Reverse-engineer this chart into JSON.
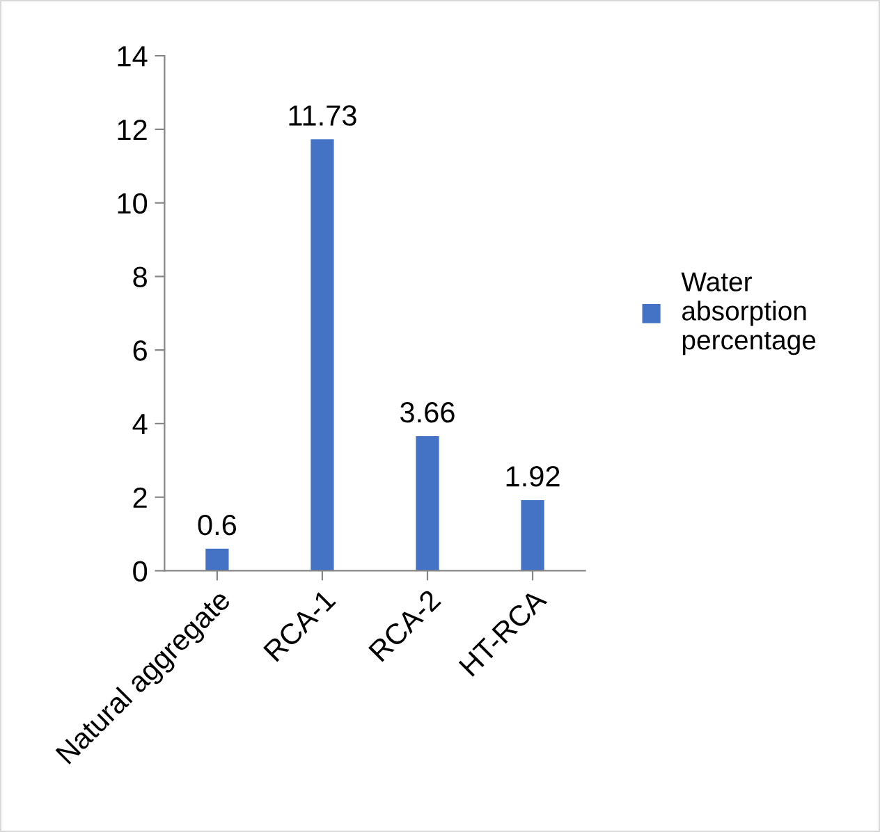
{
  "chart_data": {
    "type": "bar",
    "categories": [
      "Natural aggregate",
      "RCA-1",
      "RCA-2",
      "HT-RCA"
    ],
    "series": [
      {
        "name": "Water absorption percentage",
        "color": "#4472c4",
        "values": [
          0.6,
          11.73,
          3.66,
          1.92
        ]
      }
    ],
    "ylim": [
      0,
      14
    ],
    "yticks": [
      0,
      2,
      4,
      6,
      8,
      10,
      12,
      14
    ],
    "data_labels": true,
    "legend": "right",
    "grid": false
  }
}
